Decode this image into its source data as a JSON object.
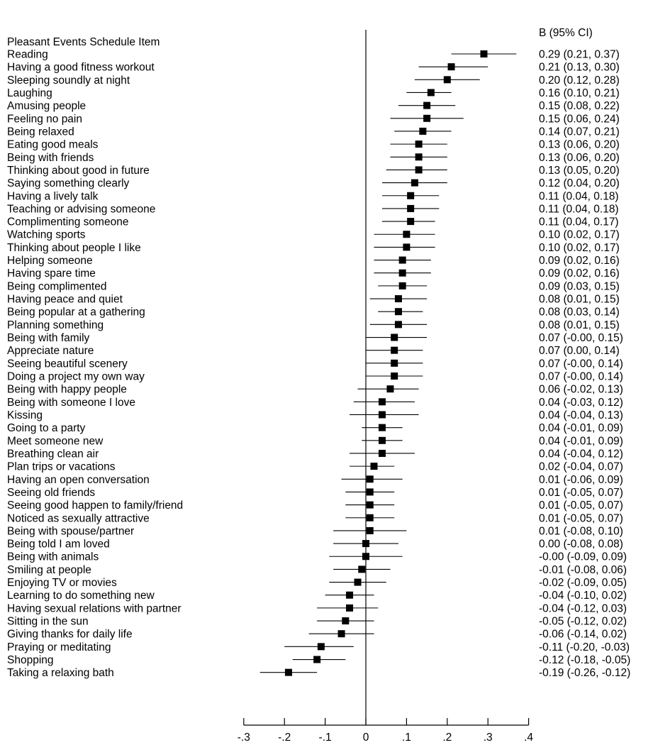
{
  "chart_data": {
    "type": "forest",
    "column_header_left": "Pleasant Events Schedule Item",
    "column_header_right": "B (95% CI)",
    "x_ticks": [
      {
        "value": -0.3,
        "label": "-.3"
      },
      {
        "value": -0.2,
        "label": "-.2"
      },
      {
        "value": -0.1,
        "label": "-.1"
      },
      {
        "value": 0,
        "label": "0"
      },
      {
        "value": 0.1,
        "label": ".1"
      },
      {
        "value": 0.2,
        "label": ".2"
      },
      {
        "value": 0.3,
        "label": ".3"
      },
      {
        "value": 0.4,
        "label": ".4"
      }
    ],
    "xlim": [
      -0.3,
      0.4
    ],
    "reference_line": 0,
    "rows": [
      {
        "item": "Reading",
        "b": 0.29,
        "lo": 0.21,
        "hi": 0.37,
        "text": "0.29 (0.21, 0.37)"
      },
      {
        "item": "Having a good fitness workout",
        "b": 0.21,
        "lo": 0.13,
        "hi": 0.3,
        "text": "0.21 (0.13, 0.30)"
      },
      {
        "item": "Sleeping soundly at night",
        "b": 0.2,
        "lo": 0.12,
        "hi": 0.28,
        "text": "0.20 (0.12, 0.28)"
      },
      {
        "item": "Laughing",
        "b": 0.16,
        "lo": 0.1,
        "hi": 0.21,
        "text": "0.16 (0.10, 0.21)"
      },
      {
        "item": "Amusing people",
        "b": 0.15,
        "lo": 0.08,
        "hi": 0.22,
        "text": "0.15 (0.08, 0.22)"
      },
      {
        "item": "Feeling no pain",
        "b": 0.15,
        "lo": 0.06,
        "hi": 0.24,
        "text": "0.15 (0.06, 0.24)"
      },
      {
        "item": "Being relaxed",
        "b": 0.14,
        "lo": 0.07,
        "hi": 0.21,
        "text": "0.14 (0.07, 0.21)"
      },
      {
        "item": "Eating good meals",
        "b": 0.13,
        "lo": 0.06,
        "hi": 0.2,
        "text": "0.13 (0.06, 0.20)"
      },
      {
        "item": "Being with friends",
        "b": 0.13,
        "lo": 0.06,
        "hi": 0.2,
        "text": "0.13 (0.06, 0.20)"
      },
      {
        "item": "Thinking about good in future",
        "b": 0.13,
        "lo": 0.05,
        "hi": 0.2,
        "text": "0.13 (0.05, 0.20)"
      },
      {
        "item": "Saying something clearly",
        "b": 0.12,
        "lo": 0.04,
        "hi": 0.2,
        "text": "0.12 (0.04, 0.20)"
      },
      {
        "item": "Having a lively talk",
        "b": 0.11,
        "lo": 0.04,
        "hi": 0.18,
        "text": "0.11 (0.04, 0.18)"
      },
      {
        "item": "Teaching or advising someone",
        "b": 0.11,
        "lo": 0.04,
        "hi": 0.18,
        "text": "0.11 (0.04, 0.18)"
      },
      {
        "item": "Complimenting someone",
        "b": 0.11,
        "lo": 0.04,
        "hi": 0.17,
        "text": "0.11 (0.04, 0.17)"
      },
      {
        "item": "Watching sports",
        "b": 0.1,
        "lo": 0.02,
        "hi": 0.17,
        "text": "0.10 (0.02, 0.17)"
      },
      {
        "item": "Thinking about people I like",
        "b": 0.1,
        "lo": 0.02,
        "hi": 0.17,
        "text": "0.10 (0.02, 0.17)"
      },
      {
        "item": "Helping someone",
        "b": 0.09,
        "lo": 0.02,
        "hi": 0.16,
        "text": "0.09 (0.02, 0.16)"
      },
      {
        "item": "Having spare time",
        "b": 0.09,
        "lo": 0.02,
        "hi": 0.16,
        "text": "0.09 (0.02, 0.16)"
      },
      {
        "item": "Being complimented",
        "b": 0.09,
        "lo": 0.03,
        "hi": 0.15,
        "text": "0.09 (0.03, 0.15)"
      },
      {
        "item": "Having peace and quiet",
        "b": 0.08,
        "lo": 0.01,
        "hi": 0.15,
        "text": "0.08 (0.01, 0.15)"
      },
      {
        "item": "Being popular at a gathering",
        "b": 0.08,
        "lo": 0.03,
        "hi": 0.14,
        "text": "0.08 (0.03, 0.14)"
      },
      {
        "item": "Planning something",
        "b": 0.08,
        "lo": 0.01,
        "hi": 0.15,
        "text": "0.08 (0.01, 0.15)"
      },
      {
        "item": "Being with family",
        "b": 0.07,
        "lo": 0.0,
        "hi": 0.15,
        "text": "0.07 (-0.00, 0.15)"
      },
      {
        "item": "Appreciate nature",
        "b": 0.07,
        "lo": 0.0,
        "hi": 0.14,
        "text": "0.07 (0.00, 0.14)"
      },
      {
        "item": "Seeing beautiful scenery",
        "b": 0.07,
        "lo": 0.0,
        "hi": 0.14,
        "text": "0.07 (-0.00, 0.14)"
      },
      {
        "item": "Doing a project my own way",
        "b": 0.07,
        "lo": 0.0,
        "hi": 0.14,
        "text": "0.07 (-0.00, 0.14)"
      },
      {
        "item": "Being with happy people",
        "b": 0.06,
        "lo": -0.02,
        "hi": 0.13,
        "text": "0.06 (-0.02, 0.13)"
      },
      {
        "item": "Being with someone I love",
        "b": 0.04,
        "lo": -0.03,
        "hi": 0.12,
        "text": "0.04 (-0.03, 0.12)"
      },
      {
        "item": "Kissing",
        "b": 0.04,
        "lo": -0.04,
        "hi": 0.13,
        "text": "0.04 (-0.04, 0.13)"
      },
      {
        "item": "Going to a party",
        "b": 0.04,
        "lo": -0.01,
        "hi": 0.09,
        "text": "0.04 (-0.01, 0.09)"
      },
      {
        "item": "Meet someone new",
        "b": 0.04,
        "lo": -0.01,
        "hi": 0.09,
        "text": "0.04 (-0.01, 0.09)"
      },
      {
        "item": "Breathing clean air",
        "b": 0.04,
        "lo": -0.04,
        "hi": 0.12,
        "text": "0.04 (-0.04, 0.12)"
      },
      {
        "item": "Plan trips or vacations",
        "b": 0.02,
        "lo": -0.04,
        "hi": 0.07,
        "text": "0.02 (-0.04, 0.07)"
      },
      {
        "item": "Having an open conversation",
        "b": 0.01,
        "lo": -0.06,
        "hi": 0.09,
        "text": "0.01 (-0.06, 0.09)"
      },
      {
        "item": "Seeing old friends",
        "b": 0.01,
        "lo": -0.05,
        "hi": 0.07,
        "text": "0.01 (-0.05, 0.07)"
      },
      {
        "item": "Seeing good happen to family/friend",
        "b": 0.01,
        "lo": -0.05,
        "hi": 0.07,
        "text": "0.01 (-0.05, 0.07)"
      },
      {
        "item": "Noticed as sexually attractive",
        "b": 0.01,
        "lo": -0.05,
        "hi": 0.07,
        "text": "0.01 (-0.05, 0.07)"
      },
      {
        "item": "Being with spouse/partner",
        "b": 0.01,
        "lo": -0.08,
        "hi": 0.1,
        "text": "0.01 (-0.08, 0.10)"
      },
      {
        "item": "Being told I am loved",
        "b": 0.0,
        "lo": -0.08,
        "hi": 0.08,
        "text": "0.00 (-0.08, 0.08)"
      },
      {
        "item": "Being with animals",
        "b": 0.0,
        "lo": -0.09,
        "hi": 0.09,
        "text": "-0.00 (-0.09, 0.09)"
      },
      {
        "item": "Smiling at people",
        "b": -0.01,
        "lo": -0.08,
        "hi": 0.06,
        "text": "-0.01 (-0.08, 0.06)"
      },
      {
        "item": "Enjoying TV or movies",
        "b": -0.02,
        "lo": -0.09,
        "hi": 0.05,
        "text": "-0.02 (-0.09, 0.05)"
      },
      {
        "item": "Learning to do something new",
        "b": -0.04,
        "lo": -0.1,
        "hi": 0.02,
        "text": "-0.04 (-0.10, 0.02)"
      },
      {
        "item": "Having sexual relations with partner",
        "b": -0.04,
        "lo": -0.12,
        "hi": 0.03,
        "text": "-0.04 (-0.12, 0.03)"
      },
      {
        "item": "Sitting in the sun",
        "b": -0.05,
        "lo": -0.12,
        "hi": 0.02,
        "text": "-0.05 (-0.12, 0.02)"
      },
      {
        "item": "Giving thanks for daily life",
        "b": -0.06,
        "lo": -0.14,
        "hi": 0.02,
        "text": "-0.06 (-0.14, 0.02)"
      },
      {
        "item": "Praying or meditating",
        "b": -0.11,
        "lo": -0.2,
        "hi": -0.03,
        "text": "-0.11 (-0.20, -0.03)"
      },
      {
        "item": "Shopping",
        "b": -0.12,
        "lo": -0.18,
        "hi": -0.05,
        "text": "-0.12 (-0.18, -0.05)"
      },
      {
        "item": "Taking a relaxing bath",
        "b": -0.19,
        "lo": -0.26,
        "hi": -0.12,
        "text": "-0.19 (-0.26, -0.12)"
      }
    ],
    "marker_color": "#000000",
    "line_color": "#000000"
  }
}
